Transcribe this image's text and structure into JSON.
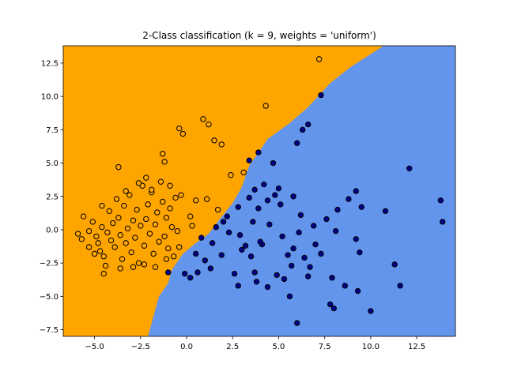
{
  "chart_data": {
    "type": "scatter",
    "title": "2-Class classification (k = 9, weights = 'uniform')",
    "xlabel": "",
    "ylabel": "",
    "xlim": [
      -6.7,
      14.6
    ],
    "ylim": [
      -8.0,
      13.8
    ],
    "x_ticks": [
      -5.0,
      -2.5,
      0.0,
      2.5,
      5.0,
      7.5,
      10.0,
      12.5
    ],
    "x_tick_labels": [
      "−5.0",
      "−2.5",
      "0.0",
      "2.5",
      "5.0",
      "7.5",
      "10.0",
      "12.5"
    ],
    "y_ticks": [
      -7.5,
      -5.0,
      -2.5,
      0.0,
      2.5,
      5.0,
      7.5,
      10.0,
      12.5
    ],
    "y_tick_labels": [
      "−7.5",
      "−5.0",
      "−2.5",
      "0.0",
      "2.5",
      "5.0",
      "7.5",
      "10.0",
      "12.5"
    ],
    "grid": false,
    "legend": "none",
    "decision_regions": [
      {
        "class": "orange",
        "color": "#ffa500",
        "boundary": [
          [
            -2.1,
            -8.0
          ],
          [
            -1.8,
            -6.5
          ],
          [
            -1.5,
            -5.0
          ],
          [
            -1.0,
            -4.0
          ],
          [
            -0.8,
            -3.0
          ],
          [
            -0.2,
            -1.8
          ],
          [
            0.5,
            -1.0
          ],
          [
            1.2,
            -0.3
          ],
          [
            1.8,
            0.8
          ],
          [
            2.5,
            2.0
          ],
          [
            3.0,
            3.2
          ],
          [
            3.4,
            4.8
          ],
          [
            4.4,
            6.8
          ],
          [
            5.6,
            8.0
          ],
          [
            6.6,
            9.2
          ],
          [
            7.8,
            11.0
          ],
          [
            8.9,
            12.2
          ],
          [
            10.7,
            13.8
          ]
        ]
      },
      {
        "class": "blue",
        "color": "#6495ed"
      }
    ],
    "series": [
      {
        "class": "orange",
        "color": "#ffa500",
        "points": [
          [
            -5.9,
            -0.3
          ],
          [
            -5.7,
            -0.7
          ],
          [
            -5.6,
            1.0
          ],
          [
            -5.3,
            -0.1
          ],
          [
            -5.1,
            0.6
          ],
          [
            -4.9,
            -0.5
          ],
          [
            -4.8,
            -1.0
          ],
          [
            -4.7,
            -1.6
          ],
          [
            -4.6,
            0.2
          ],
          [
            -4.5,
            -2.0
          ],
          [
            -4.4,
            -2.7
          ],
          [
            -4.3,
            -0.2
          ],
          [
            -4.2,
            1.4
          ],
          [
            -4.1,
            -0.8
          ],
          [
            -4.0,
            0.5
          ],
          [
            -3.9,
            -1.3
          ],
          [
            -3.8,
            2.3
          ],
          [
            -3.7,
            0.9
          ],
          [
            -3.6,
            -0.4
          ],
          [
            -3.5,
            -2.2
          ],
          [
            -3.4,
            1.8
          ],
          [
            -3.3,
            -1.0
          ],
          [
            -3.2,
            0.1
          ],
          [
            -3.1,
            2.6
          ],
          [
            -3.0,
            -1.7
          ],
          [
            -2.9,
            0.7
          ],
          [
            -2.8,
            -0.6
          ],
          [
            -2.7,
            1.5
          ],
          [
            -2.6,
            -2.5
          ],
          [
            -2.5,
            0.3
          ],
          [
            -2.4,
            3.3
          ],
          [
            -2.3,
            -1.2
          ],
          [
            -2.2,
            0.8
          ],
          [
            -2.1,
            1.9
          ],
          [
            -2.0,
            -0.3
          ],
          [
            -1.9,
            2.8
          ],
          [
            -1.8,
            -1.8
          ],
          [
            -1.7,
            0.4
          ],
          [
            -1.6,
            1.3
          ],
          [
            -1.5,
            -0.9
          ],
          [
            -1.4,
            3.6
          ],
          [
            -1.3,
            2.1
          ],
          [
            -1.2,
            -0.5
          ],
          [
            -1.1,
            0.9
          ],
          [
            -1.0,
            -1.4
          ],
          [
            -0.9,
            1.6
          ],
          [
            -0.8,
            0.2
          ],
          [
            -0.7,
            -2.0
          ],
          [
            -0.6,
            2.4
          ],
          [
            -0.5,
            -0.1
          ],
          [
            -0.4,
            7.6
          ],
          [
            -0.2,
            7.2
          ],
          [
            0.2,
            1.0
          ],
          [
            0.5,
            2.2
          ],
          [
            0.9,
            8.3
          ],
          [
            1.2,
            7.9
          ],
          [
            1.5,
            6.7
          ],
          [
            1.9,
            6.4
          ],
          [
            3.1,
            4.3
          ],
          [
            4.3,
            9.3
          ],
          [
            7.2,
            12.8
          ],
          [
            2.4,
            4.1
          ],
          [
            -3.7,
            4.7
          ],
          [
            -1.3,
            5.7
          ],
          [
            -1.2,
            5.1
          ],
          [
            -2.2,
            3.9
          ],
          [
            -0.9,
            3.3
          ],
          [
            -5.3,
            -1.3
          ],
          [
            -5.0,
            -1.8
          ],
          [
            -4.5,
            -3.3
          ],
          [
            -3.6,
            -2.9
          ],
          [
            -2.9,
            -2.8
          ],
          [
            -2.3,
            -2.6
          ],
          [
            -1.7,
            -2.8
          ],
          [
            -1.1,
            -2.2
          ],
          [
            -0.4,
            -1.3
          ],
          [
            0.3,
            0.3
          ],
          [
            -4.6,
            1.8
          ],
          [
            -3.3,
            2.9
          ],
          [
            -2.6,
            3.5
          ],
          [
            -1.9,
            3.0
          ],
          [
            -0.3,
            2.6
          ],
          [
            1.1,
            2.3
          ],
          [
            1.7,
            1.5
          ]
        ]
      },
      {
        "class": "blue",
        "color": "#00008b",
        "points": [
          [
            7.3,
            10.1
          ],
          [
            6.3,
            7.5
          ],
          [
            6.6,
            7.9
          ],
          [
            6.0,
            6.5
          ],
          [
            12.1,
            4.6
          ],
          [
            13.8,
            2.2
          ],
          [
            13.9,
            0.6
          ],
          [
            10.8,
            1.4
          ],
          [
            9.2,
            2.9
          ],
          [
            9.5,
            1.7
          ],
          [
            9.2,
            -0.7
          ],
          [
            9.4,
            -1.7
          ],
          [
            11.3,
            -2.6
          ],
          [
            11.6,
            -4.2
          ],
          [
            10.0,
            -6.1
          ],
          [
            7.8,
            -5.6
          ],
          [
            8.0,
            -5.9
          ],
          [
            9.3,
            -4.6
          ],
          [
            6.0,
            -7.0
          ],
          [
            5.6,
            -5.0
          ],
          [
            4.9,
            -3.4
          ],
          [
            3.7,
            -3.2
          ],
          [
            2.6,
            -3.3
          ],
          [
            1.0,
            -2.3
          ],
          [
            0.5,
            -1.8
          ],
          [
            0.8,
            -0.6
          ],
          [
            1.6,
            0.2
          ],
          [
            2.2,
            1.0
          ],
          [
            2.8,
            1.7
          ],
          [
            3.4,
            2.4
          ],
          [
            3.9,
            1.6
          ],
          [
            4.5,
            0.4
          ],
          [
            5.2,
            -0.5
          ],
          [
            5.8,
            -1.4
          ],
          [
            6.4,
            -2.1
          ],
          [
            7.0,
            -1.1
          ],
          [
            7.6,
            0.8
          ],
          [
            8.2,
            1.5
          ],
          [
            8.8,
            2.3
          ],
          [
            4.8,
            2.6
          ],
          [
            5.0,
            3.1
          ],
          [
            5.8,
            2.5
          ],
          [
            6.2,
            1.1
          ],
          [
            6.9,
            0.3
          ],
          [
            3.0,
            -1.5
          ],
          [
            3.5,
            -2.0
          ],
          [
            4.1,
            -1.1
          ],
          [
            2.3,
            -0.2
          ],
          [
            1.9,
            -1.9
          ],
          [
            1.3,
            -2.9
          ],
          [
            0.2,
            -3.6
          ],
          [
            -0.1,
            -3.3
          ],
          [
            -1.0,
            -3.2
          ],
          [
            0.6,
            -3.2
          ],
          [
            2.8,
            -4.2
          ],
          [
            4.4,
            -4.3
          ],
          [
            5.3,
            -3.7
          ],
          [
            6.7,
            -2.8
          ],
          [
            7.9,
            -3.6
          ],
          [
            8.6,
            -4.2
          ],
          [
            4.2,
            3.4
          ],
          [
            3.7,
            3.0
          ],
          [
            3.4,
            5.2
          ],
          [
            3.9,
            5.8
          ],
          [
            4.7,
            5.0
          ],
          [
            2.9,
            -0.4
          ],
          [
            3.6,
            0.6
          ],
          [
            4.0,
            -0.9
          ],
          [
            5.5,
            -1.9
          ],
          [
            6.1,
            -0.2
          ],
          [
            7.3,
            -1.8
          ],
          [
            8.1,
            -0.1
          ],
          [
            5.1,
            1.9
          ],
          [
            4.4,
            2.2
          ],
          [
            2.0,
            0.6
          ],
          [
            1.4,
            -1.0
          ],
          [
            3.2,
            -1.2
          ],
          [
            5.7,
            -2.7
          ],
          [
            6.6,
            -3.5
          ],
          [
            3.8,
            -3.9
          ]
        ]
      }
    ]
  }
}
